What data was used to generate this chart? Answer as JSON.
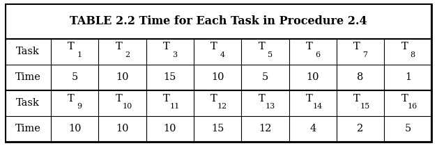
{
  "title": "TABLE 2.2 Time for Each Task in Procedure 2.4",
  "task_subs1": [
    "1",
    "2",
    "3",
    "4",
    "5",
    "6",
    "7",
    "8"
  ],
  "time_vals1": [
    "5",
    "10",
    "15",
    "10",
    "5",
    "10",
    "8",
    "1"
  ],
  "task_subs2": [
    "9",
    "10",
    "11",
    "12",
    "13",
    "14",
    "15",
    "16"
  ],
  "time_vals2": [
    "10",
    "10",
    "10",
    "15",
    "12",
    "4",
    "2",
    "5"
  ],
  "bg_color": "#ffffff",
  "title_fontsize": 11.5,
  "cell_fontsize": 10.5,
  "sub_fontsize": 8.0
}
